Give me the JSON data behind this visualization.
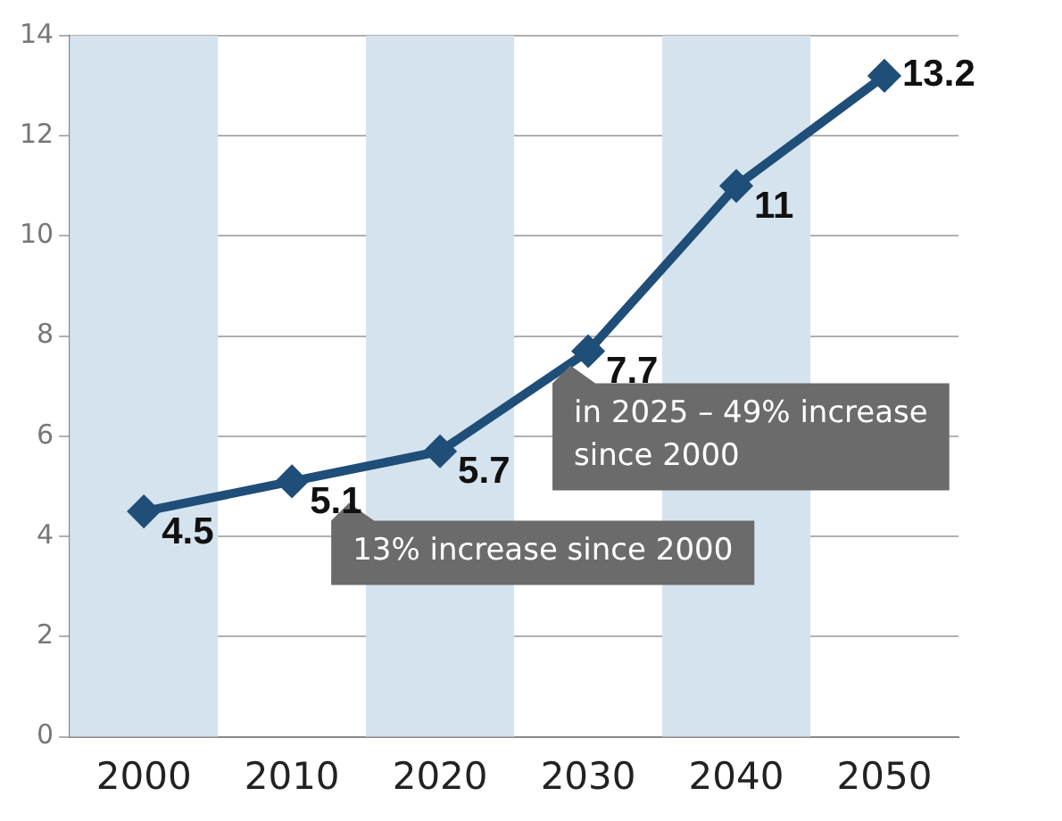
{
  "chart_data": {
    "type": "line",
    "categories": [
      "2000",
      "2010",
      "2020",
      "2030",
      "2040",
      "2050"
    ],
    "series": [
      {
        "color": "#1f4e79",
        "values": [
          4.5,
          5.1,
          5.7,
          7.7,
          11,
          13.2
        ]
      }
    ],
    "ylim": [
      0,
      14
    ],
    "yticks": [
      0,
      2,
      4,
      6,
      8,
      10,
      12,
      14
    ],
    "grid": "y",
    "marker": "diamond",
    "line_style": "solid",
    "data_labels": true,
    "legend": false,
    "bands": [
      {
        "axis": "x",
        "from": "2000",
        "to": "2000",
        "color": "#d5e3ee"
      },
      {
        "axis": "x",
        "from": "2020",
        "to": "2020",
        "color": "#d5e3ee"
      },
      {
        "axis": "x",
        "from": "2040",
        "to": "2040",
        "color": "#d5e3ee"
      }
    ],
    "annotations": [
      {
        "text": "in 2025 – 49% increase since 2000",
        "x": "2030",
        "y": 7.7
      },
      {
        "text": "13% increase since 2000",
        "x": "2010",
        "y": 5.1
      }
    ]
  }
}
